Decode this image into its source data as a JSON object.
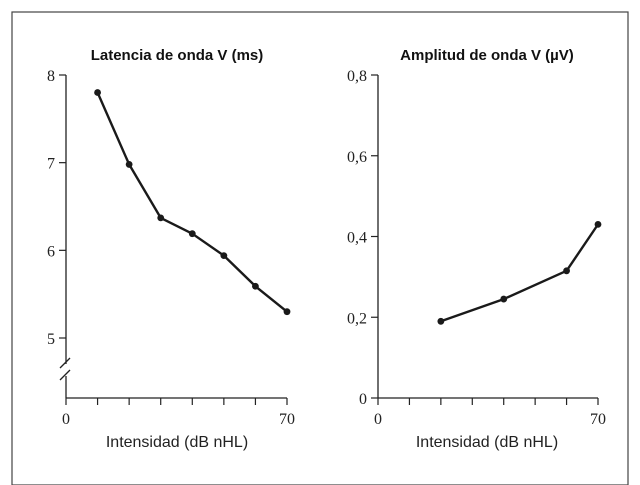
{
  "chart_data": [
    {
      "type": "line",
      "title": "Latencia de onda V (ms)",
      "xlabel": "Intensidad (dB nHL)",
      "ylabel": "",
      "x": [
        10,
        20,
        30,
        40,
        50,
        60,
        70
      ],
      "series": [
        {
          "values": [
            7.8,
            6.98,
            6.37,
            6.19,
            5.94,
            5.59,
            5.3
          ]
        }
      ],
      "xlim": [
        0,
        70
      ],
      "ylim": [
        5,
        8
      ],
      "x_ticks": [
        "0",
        "70"
      ],
      "y_ticks": [
        "5",
        "6",
        "7",
        "8"
      ],
      "axis_break": true,
      "grid": false,
      "line_color": "#1a1a1a"
    },
    {
      "type": "line",
      "title": "Amplitud de onda V (µV)",
      "xlabel": "Intensidad (dB nHL)",
      "ylabel": "",
      "x": [
        20,
        40,
        60,
        70
      ],
      "series": [
        {
          "values": [
            0.19,
            0.245,
            0.315,
            0.43
          ]
        }
      ],
      "xlim": [
        0,
        70
      ],
      "ylim": [
        0,
        0.8
      ],
      "x_ticks": [
        "0",
        "70"
      ],
      "y_ticks": [
        "0",
        "0,2",
        "0,4",
        "0,6",
        "0,8"
      ],
      "axis_break": false,
      "grid": false,
      "line_color": "#1a1a1a"
    }
  ]
}
